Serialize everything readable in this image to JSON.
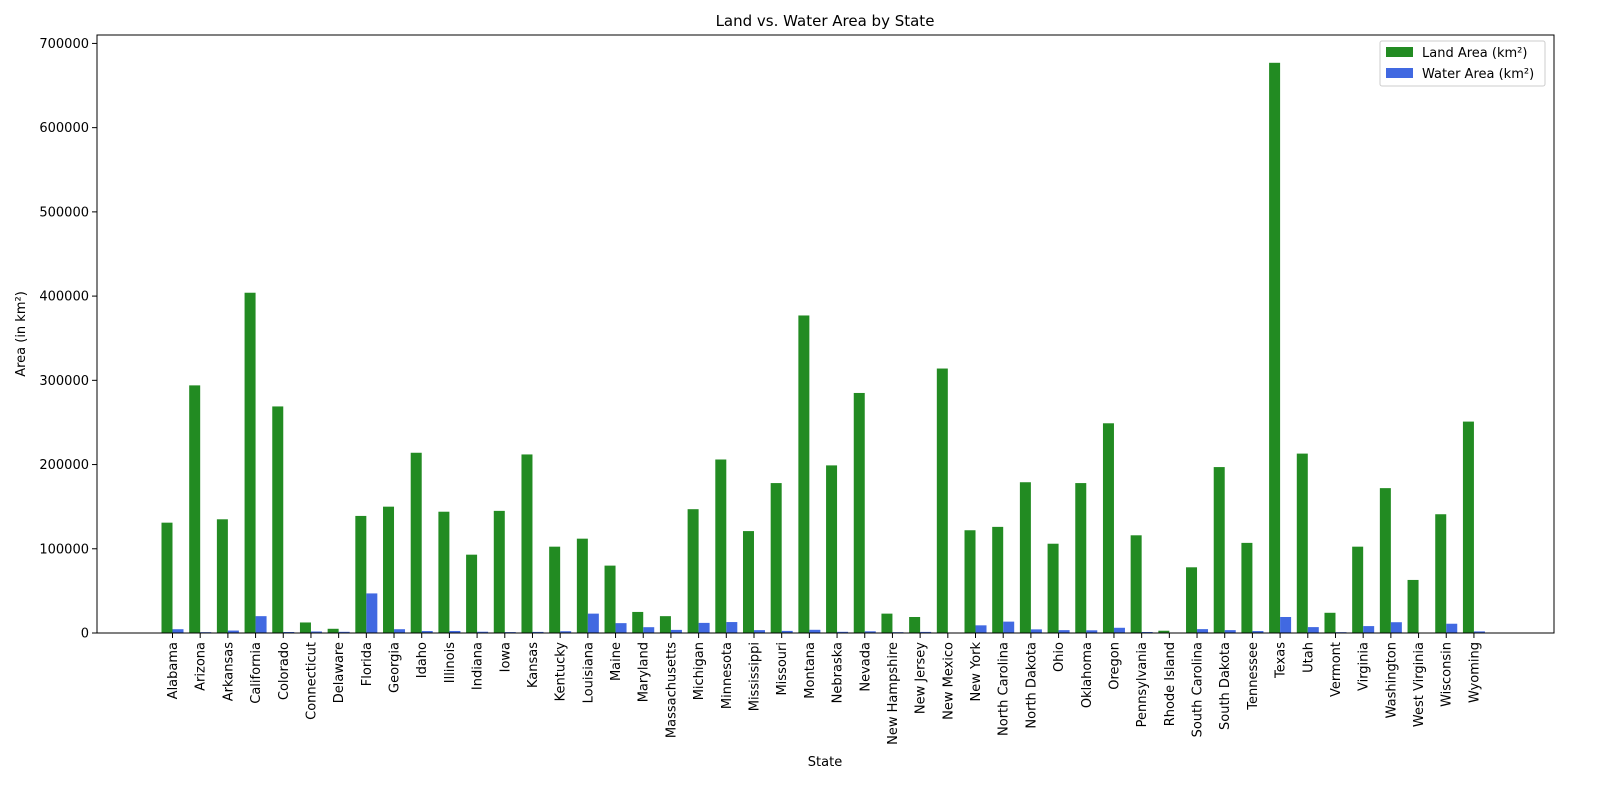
{
  "chart_data": {
    "type": "bar",
    "title": "Land vs. Water Area by State",
    "xlabel": "State",
    "ylabel": "Area (in km²)",
    "ylim": [
      0,
      710000
    ],
    "yticks": [
      0,
      100000,
      200000,
      300000,
      400000,
      500000,
      600000,
      700000
    ],
    "legend_position": "top-right",
    "categories": [
      "Alabama",
      "Arizona",
      "Arkansas",
      "California",
      "Colorado",
      "Connecticut",
      "Delaware",
      "Florida",
      "Georgia",
      "Idaho",
      "Illinois",
      "Indiana",
      "Iowa",
      "Kansas",
      "Kentucky",
      "Louisiana",
      "Maine",
      "Maryland",
      "Massachusetts",
      "Michigan",
      "Minnesota",
      "Mississippi",
      "Missouri",
      "Montana",
      "Nebraska",
      "Nevada",
      "New Hampshire",
      "New Jersey",
      "New Mexico",
      "New York",
      "North Carolina",
      "North Dakota",
      "Ohio",
      "Oklahoma",
      "Oregon",
      "Pennsylvania",
      "Rhode Island",
      "South Carolina",
      "South Dakota",
      "Tennessee",
      "Texas",
      "Utah",
      "Vermont",
      "Virginia",
      "Washington",
      "West Virginia",
      "Wisconsin",
      "Wyoming"
    ],
    "series": [
      {
        "name": "Land Area (km²)",
        "color": "#228B22",
        "values": [
          131000,
          294000,
          135000,
          404000,
          269000,
          12500,
          5000,
          139000,
          150000,
          214000,
          144000,
          93000,
          145000,
          212000,
          102500,
          112000,
          80000,
          25000,
          20000,
          147000,
          206000,
          121000,
          178000,
          377000,
          199000,
          285000,
          23000,
          19000,
          314000,
          122000,
          126000,
          179000,
          106000,
          178000,
          249000,
          116000,
          2700,
          78000,
          197000,
          107000,
          677000,
          213000,
          24000,
          102500,
          172000,
          63000,
          141000,
          251000
        ]
      },
      {
        "name": "Water Area (km²)",
        "color": "#4169E1",
        "values": [
          4500,
          1000,
          2900,
          20000,
          1200,
          1800,
          1400,
          47000,
          4500,
          2300,
          2400,
          1500,
          1100,
          1300,
          2100,
          23000,
          11700,
          6900,
          3700,
          12000,
          13000,
          3400,
          2500,
          3800,
          1400,
          2000,
          1000,
          1300,
          600,
          9100,
          13500,
          4300,
          3400,
          3200,
          6200,
          1200,
          600,
          4600,
          3400,
          2300,
          19000,
          7000,
          1000,
          8200,
          12800,
          500,
          11000,
          1900
        ]
      }
    ]
  }
}
